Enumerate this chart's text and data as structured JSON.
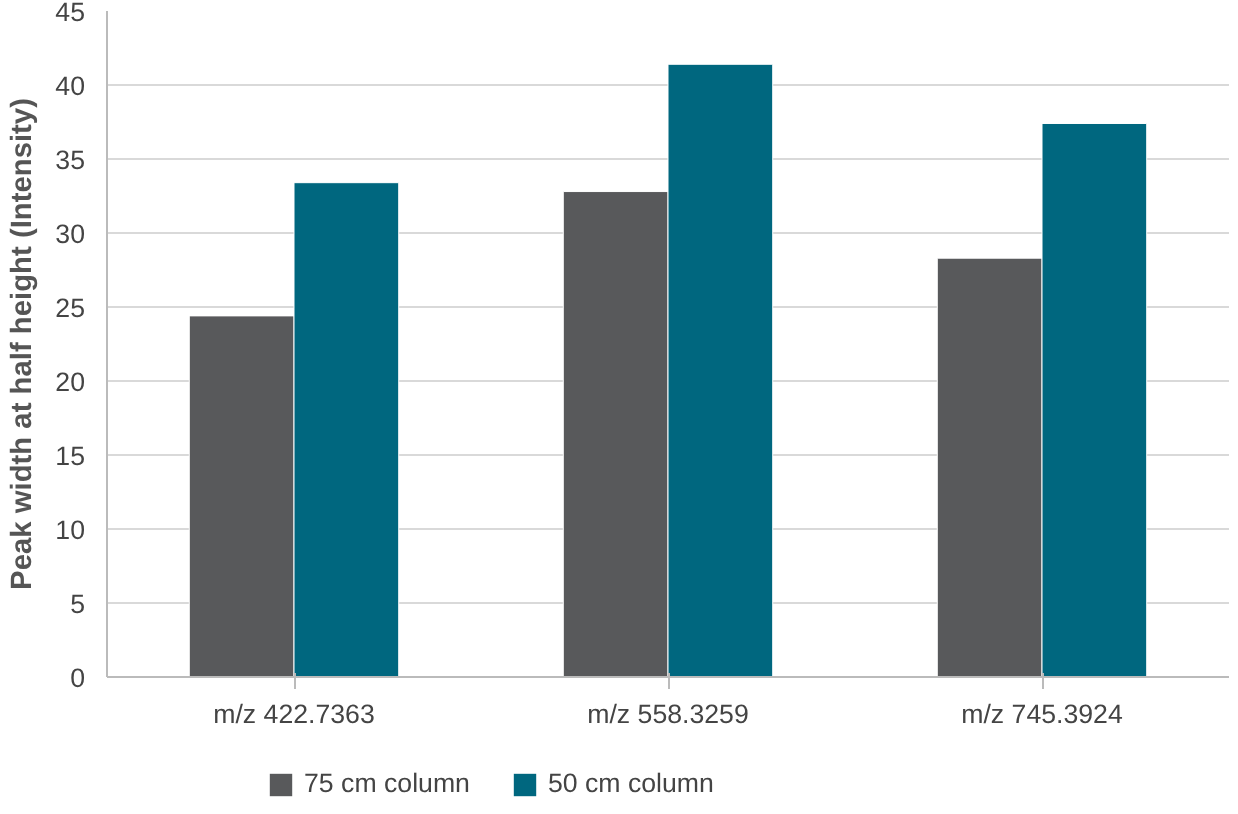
{
  "chart_data": {
    "type": "bar",
    "ylabel": "Peak width at half height (Intensity)",
    "categories": [
      "m/z 422.7363",
      "m/z 558.3259",
      "m/z 745.3924"
    ],
    "series": [
      {
        "name": "75 cm column",
        "color": "#58595b",
        "values": [
          24.4,
          32.8,
          28.3
        ]
      },
      {
        "name": "50 cm column",
        "color": "#00677f",
        "values": [
          33.4,
          41.4,
          37.4
        ]
      }
    ],
    "ylim": [
      0,
      45
    ],
    "yticks": [
      0,
      5,
      10,
      15,
      20,
      25,
      30,
      35,
      40,
      45
    ],
    "grid": "y",
    "legend": "bottom left"
  }
}
